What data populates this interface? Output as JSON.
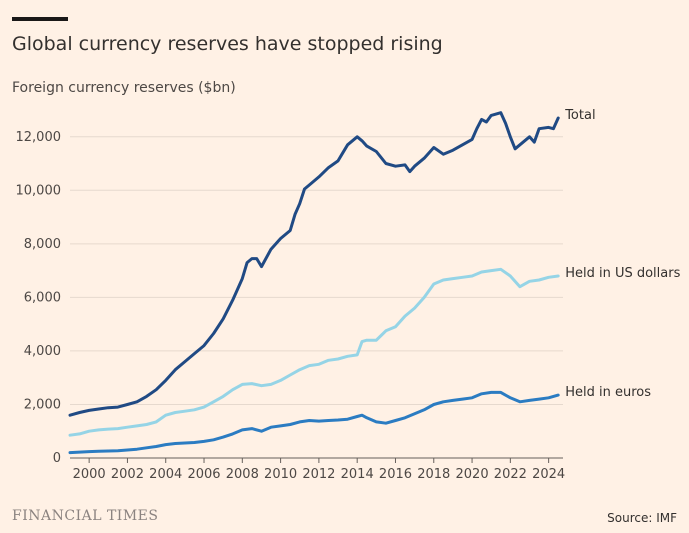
{
  "header": {
    "title": "Global currency reserves have stopped rising",
    "subtitle": "Foreign currency reserves ($bn)"
  },
  "footer": {
    "logo_text": "FINANCIAL TIMES",
    "source": "Source: IMF"
  },
  "chart_data": {
    "type": "line",
    "title": "Global currency reserves have stopped rising",
    "subtitle": "Foreign currency reserves ($bn)",
    "xlabel": "",
    "ylabel": "",
    "xlim": [
      1999.0,
      2024.75
    ],
    "ylim": [
      0,
      13000
    ],
    "x_ticks": [
      2000,
      2002,
      2004,
      2006,
      2008,
      2010,
      2012,
      2014,
      2016,
      2018,
      2020,
      2022,
      2024
    ],
    "y_ticks": [
      0,
      2000,
      4000,
      6000,
      8000,
      10000,
      12000
    ],
    "grid": "horizontal",
    "legend": "labels at line ends, right",
    "series": [
      {
        "name": "Total",
        "color": "#204a84",
        "points": [
          [
            1999.0,
            1600
          ],
          [
            1999.5,
            1700
          ],
          [
            2000.0,
            1780
          ],
          [
            2000.5,
            1830
          ],
          [
            2001.0,
            1880
          ],
          [
            2001.5,
            1900
          ],
          [
            2002.0,
            2000
          ],
          [
            2002.5,
            2100
          ],
          [
            2003.0,
            2300
          ],
          [
            2003.5,
            2550
          ],
          [
            2004.0,
            2900
          ],
          [
            2004.5,
            3300
          ],
          [
            2005.0,
            3600
          ],
          [
            2005.5,
            3900
          ],
          [
            2006.0,
            4200
          ],
          [
            2006.5,
            4650
          ],
          [
            2007.0,
            5200
          ],
          [
            2007.5,
            5900
          ],
          [
            2008.0,
            6700
          ],
          [
            2008.25,
            7300
          ],
          [
            2008.5,
            7450
          ],
          [
            2008.75,
            7450
          ],
          [
            2009.0,
            7150
          ],
          [
            2009.5,
            7800
          ],
          [
            2010.0,
            8200
          ],
          [
            2010.5,
            8500
          ],
          [
            2010.75,
            9100
          ],
          [
            2011.0,
            9500
          ],
          [
            2011.25,
            10050
          ],
          [
            2011.5,
            10200
          ],
          [
            2012.0,
            10500
          ],
          [
            2012.5,
            10850
          ],
          [
            2013.0,
            11100
          ],
          [
            2013.25,
            11400
          ],
          [
            2013.5,
            11700
          ],
          [
            2014.0,
            12000
          ],
          [
            2014.25,
            11850
          ],
          [
            2014.5,
            11650
          ],
          [
            2015.0,
            11450
          ],
          [
            2015.5,
            11000
          ],
          [
            2016.0,
            10900
          ],
          [
            2016.5,
            10950
          ],
          [
            2016.75,
            10700
          ],
          [
            2017.0,
            10900
          ],
          [
            2017.5,
            11200
          ],
          [
            2018.0,
            11600
          ],
          [
            2018.5,
            11350
          ],
          [
            2019.0,
            11500
          ],
          [
            2019.5,
            11700
          ],
          [
            2020.0,
            11900
          ],
          [
            2020.25,
            12300
          ],
          [
            2020.5,
            12650
          ],
          [
            2020.75,
            12550
          ],
          [
            2021.0,
            12800
          ],
          [
            2021.5,
            12900
          ],
          [
            2021.75,
            12500
          ],
          [
            2022.0,
            12000
          ],
          [
            2022.25,
            11550
          ],
          [
            2022.5,
            11700
          ],
          [
            2023.0,
            12000
          ],
          [
            2023.25,
            11800
          ],
          [
            2023.5,
            12300
          ],
          [
            2024.0,
            12350
          ],
          [
            2024.25,
            12300
          ],
          [
            2024.5,
            12700
          ]
        ]
      },
      {
        "name": "Held in US dollars",
        "color": "#95d4e6",
        "points": [
          [
            1999.0,
            850
          ],
          [
            1999.5,
            900
          ],
          [
            2000.0,
            1000
          ],
          [
            2000.5,
            1050
          ],
          [
            2001.0,
            1080
          ],
          [
            2001.5,
            1100
          ],
          [
            2002.0,
            1150
          ],
          [
            2002.5,
            1200
          ],
          [
            2003.0,
            1250
          ],
          [
            2003.5,
            1350
          ],
          [
            2004.0,
            1600
          ],
          [
            2004.5,
            1700
          ],
          [
            2005.0,
            1750
          ],
          [
            2005.5,
            1800
          ],
          [
            2006.0,
            1900
          ],
          [
            2006.5,
            2100
          ],
          [
            2007.0,
            2300
          ],
          [
            2007.5,
            2550
          ],
          [
            2008.0,
            2750
          ],
          [
            2008.5,
            2780
          ],
          [
            2009.0,
            2700
          ],
          [
            2009.5,
            2750
          ],
          [
            2010.0,
            2900
          ],
          [
            2010.5,
            3100
          ],
          [
            2011.0,
            3300
          ],
          [
            2011.5,
            3450
          ],
          [
            2012.0,
            3500
          ],
          [
            2012.5,
            3650
          ],
          [
            2013.0,
            3700
          ],
          [
            2013.5,
            3800
          ],
          [
            2014.0,
            3850
          ],
          [
            2014.25,
            4350
          ],
          [
            2014.5,
            4400
          ],
          [
            2015.0,
            4400
          ],
          [
            2015.5,
            4750
          ],
          [
            2016.0,
            4900
          ],
          [
            2016.5,
            5300
          ],
          [
            2017.0,
            5600
          ],
          [
            2017.5,
            6000
          ],
          [
            2018.0,
            6500
          ],
          [
            2018.5,
            6650
          ],
          [
            2019.0,
            6700
          ],
          [
            2019.5,
            6750
          ],
          [
            2020.0,
            6800
          ],
          [
            2020.5,
            6950
          ],
          [
            2021.0,
            7000
          ],
          [
            2021.5,
            7050
          ],
          [
            2022.0,
            6800
          ],
          [
            2022.5,
            6400
          ],
          [
            2023.0,
            6600
          ],
          [
            2023.5,
            6650
          ],
          [
            2024.0,
            6750
          ],
          [
            2024.5,
            6800
          ]
        ]
      },
      {
        "name": "Held in euros",
        "color": "#2b7cc2",
        "points": [
          [
            1999.0,
            200
          ],
          [
            1999.5,
            220
          ],
          [
            2000.0,
            240
          ],
          [
            2000.5,
            250
          ],
          [
            2001.0,
            260
          ],
          [
            2001.5,
            270
          ],
          [
            2002.0,
            300
          ],
          [
            2002.5,
            330
          ],
          [
            2003.0,
            380
          ],
          [
            2003.5,
            430
          ],
          [
            2004.0,
            500
          ],
          [
            2004.5,
            540
          ],
          [
            2005.0,
            560
          ],
          [
            2005.5,
            580
          ],
          [
            2006.0,
            620
          ],
          [
            2006.5,
            680
          ],
          [
            2007.0,
            780
          ],
          [
            2007.5,
            900
          ],
          [
            2008.0,
            1050
          ],
          [
            2008.5,
            1100
          ],
          [
            2009.0,
            1000
          ],
          [
            2009.5,
            1150
          ],
          [
            2010.0,
            1200
          ],
          [
            2010.5,
            1250
          ],
          [
            2011.0,
            1350
          ],
          [
            2011.5,
            1400
          ],
          [
            2012.0,
            1380
          ],
          [
            2012.5,
            1400
          ],
          [
            2013.0,
            1420
          ],
          [
            2013.5,
            1450
          ],
          [
            2014.0,
            1550
          ],
          [
            2014.25,
            1600
          ],
          [
            2014.5,
            1500
          ],
          [
            2015.0,
            1350
          ],
          [
            2015.5,
            1300
          ],
          [
            2016.0,
            1400
          ],
          [
            2016.5,
            1500
          ],
          [
            2017.0,
            1650
          ],
          [
            2017.5,
            1800
          ],
          [
            2018.0,
            2000
          ],
          [
            2018.5,
            2100
          ],
          [
            2019.0,
            2150
          ],
          [
            2019.5,
            2200
          ],
          [
            2020.0,
            2250
          ],
          [
            2020.5,
            2400
          ],
          [
            2021.0,
            2450
          ],
          [
            2021.5,
            2450
          ],
          [
            2022.0,
            2250
          ],
          [
            2022.5,
            2100
          ],
          [
            2023.0,
            2150
          ],
          [
            2023.5,
            2200
          ],
          [
            2024.0,
            2250
          ],
          [
            2024.5,
            2350
          ]
        ]
      }
    ]
  }
}
